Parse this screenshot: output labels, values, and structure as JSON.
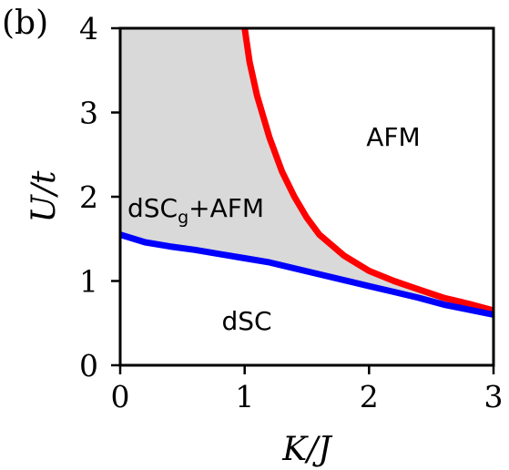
{
  "panel_label": "(b)",
  "chart_data": {
    "type": "line",
    "xlabel": "K/J",
    "ylabel": "U/t",
    "xlim": [
      0,
      3
    ],
    "ylim": [
      0,
      4
    ],
    "xticks": [
      "0",
      "1",
      "2",
      "3"
    ],
    "yticks": [
      "0",
      "1",
      "2",
      "3",
      "4"
    ],
    "grid": false,
    "colors": {
      "red_boundary": "#ff0000",
      "blue_boundary": "#0000ff",
      "shaded_region": "#d9d9d9"
    },
    "series": [
      {
        "x": [
          1.0,
          1.04,
          1.1,
          1.2,
          1.3,
          1.4,
          1.5,
          1.6,
          1.8,
          2.0,
          2.2,
          2.4,
          2.6,
          2.8,
          3.0
        ],
        "y": [
          4.0,
          3.6,
          3.2,
          2.7,
          2.3,
          2.0,
          1.75,
          1.55,
          1.3,
          1.12,
          1.0,
          0.9,
          0.8,
          0.73,
          0.65
        ]
      },
      {
        "x": [
          0.0,
          0.2,
          0.4,
          0.6,
          0.8,
          1.0,
          1.2,
          1.4,
          1.6,
          1.8,
          2.0,
          2.2,
          2.4,
          2.6,
          2.8,
          3.0
        ],
        "y": [
          1.55,
          1.46,
          1.41,
          1.37,
          1.32,
          1.27,
          1.22,
          1.15,
          1.08,
          1.01,
          0.94,
          0.87,
          0.8,
          0.72,
          0.66,
          0.6
        ]
      }
    ],
    "region_labels": {
      "afm": "AFM",
      "coexist_main": "dSC",
      "coexist_sub": "g",
      "coexist_suffix": "+AFM",
      "dsc": "dSC"
    }
  }
}
